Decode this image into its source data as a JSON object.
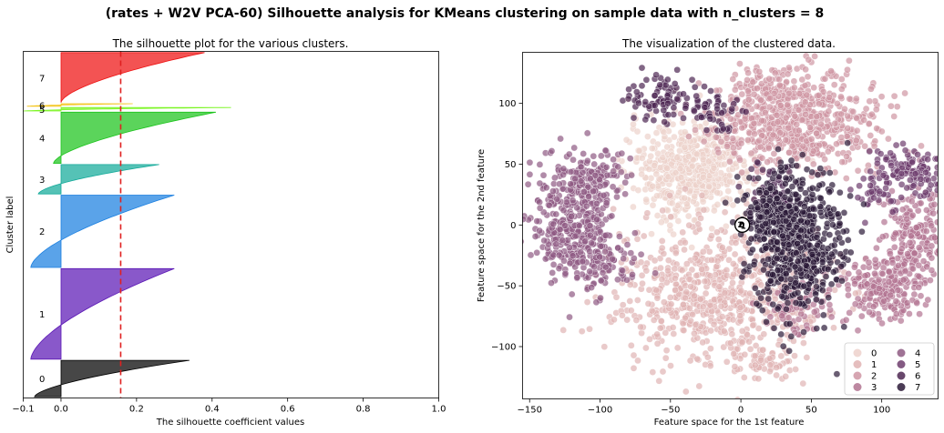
{
  "suptitle": "(rates + W2V PCA-60) Silhouette analysis for KMeans clustering on sample data with n_clusters = 8",
  "chart_data": [
    {
      "type": "area",
      "title": "The silhouette plot for the various clusters.",
      "xlabel": "The silhouette coefficient values",
      "ylabel": "Cluster label",
      "xlim": [
        -0.1,
        1.0
      ],
      "xticks": [
        "−0.1",
        "0.0",
        "0.2",
        "0.4",
        "0.6",
        "0.8",
        "1.0"
      ],
      "xtick_values": [
        -0.1,
        0.0,
        0.2,
        0.4,
        0.6,
        0.8,
        1.0
      ],
      "silhouette_avg": 0.158,
      "grid": false,
      "clusters": [
        {
          "label": "0",
          "color": "#000000",
          "min": -0.07,
          "max": 0.34,
          "size": 310
        },
        {
          "label": "1",
          "color": "#5b17b5",
          "min": -0.08,
          "max": 0.3,
          "size": 770
        },
        {
          "label": "2",
          "color": "#1a7fe0",
          "min": -0.08,
          "max": 0.3,
          "size": 615
        },
        {
          "label": "3",
          "color": "#14aa9a",
          "min": -0.06,
          "max": 0.26,
          "size": 250
        },
        {
          "label": "4",
          "color": "#1cc41c",
          "min": -0.02,
          "max": 0.41,
          "size": 435
        },
        {
          "label": "5",
          "color": "#7cf524",
          "min": -0.1,
          "max": 0.45,
          "size": 30
        },
        {
          "label": "6",
          "color": "#f4c51c",
          "min": -0.09,
          "max": 0.19,
          "size": 22
        },
        {
          "label": "7",
          "color": "#ee1111",
          "min": 0.0,
          "max": 0.38,
          "size": 425
        }
      ]
    },
    {
      "type": "scatter",
      "title": "The visualization of the clustered data.",
      "xlabel": "Feature space for the 1st feature",
      "ylabel": "Feature space for the 2nd feature",
      "xlim": [
        -155,
        140
      ],
      "ylim": [
        -143,
        142
      ],
      "xticks": [
        "−150",
        "−100",
        "−50",
        "0",
        "50",
        "100"
      ],
      "xtick_values": [
        -150,
        -100,
        -50,
        0,
        50,
        100
      ],
      "yticks": [
        "−100",
        "−50",
        "0",
        "50",
        "100"
      ],
      "ytick_values": [
        -100,
        -50,
        0,
        50,
        100
      ],
      "grid": false,
      "legend_position": "lower-right",
      "centers": [
        {
          "label": "0",
          "x": 1,
          "y": 1
        },
        {
          "label": "1",
          "x": 2,
          "y": 0
        },
        {
          "label": "2",
          "x": 0,
          "y": 1
        }
      ],
      "series": [
        {
          "name": "0",
          "color": "#edd1cb",
          "clusters": [
            {
              "cx": -35,
              "cy": 45,
              "sx": 22,
              "sy": 20,
              "n": 560
            }
          ]
        },
        {
          "name": "1",
          "color": "#e0b3b3",
          "clusters": [
            {
              "cx": -15,
              "cy": -55,
              "sx": 38,
              "sy": 28,
              "n": 700
            },
            {
              "cx": 15,
              "cy": -110,
              "sx": 12,
              "sy": 8,
              "n": 60
            }
          ]
        },
        {
          "name": "2",
          "color": "#cf95a3",
          "clusters": [
            {
              "cx": 40,
              "cy": 85,
              "sx": 30,
              "sy": 20,
              "n": 650
            },
            {
              "cx": 15,
              "cy": 110,
              "sx": 10,
              "sy": 8,
              "n": 50
            }
          ]
        },
        {
          "name": "3",
          "color": "#b27391",
          "clusters": [
            {
              "cx": 120,
              "cy": -10,
              "sx": 12,
              "sy": 22,
              "n": 200
            },
            {
              "cx": 100,
              "cy": -55,
              "sx": 14,
              "sy": 14,
              "n": 180
            },
            {
              "cx": 40,
              "cy": -70,
              "sx": 12,
              "sy": 10,
              "n": 70
            }
          ]
        },
        {
          "name": "4",
          "color": "#8e5a83",
          "clusters": [
            {
              "cx": -120,
              "cy": 0,
              "sx": 14,
              "sy": 25,
              "n": 380
            },
            {
              "cx": -105,
              "cy": 40,
              "sx": 12,
              "sy": 12,
              "n": 90
            },
            {
              "cx": -95,
              "cy": -30,
              "sx": 10,
              "sy": 10,
              "n": 70
            }
          ]
        },
        {
          "name": "5",
          "color": "#6e3d6d",
          "clusters": [
            {
              "cx": 120,
              "cy": 45,
              "sx": 12,
              "sy": 10,
              "n": 110
            },
            {
              "cx": 95,
              "cy": 30,
              "sx": 8,
              "sy": 8,
              "n": 40
            }
          ]
        },
        {
          "name": "6",
          "color": "#4d2752",
          "clusters": [
            {
              "cx": -55,
              "cy": 105,
              "sx": 15,
              "sy": 10,
              "n": 90
            },
            {
              "cx": -15,
              "cy": 90,
              "sx": 10,
              "sy": 10,
              "n": 45
            },
            {
              "cx": 20,
              "cy": 25,
              "sx": 10,
              "sy": 15,
              "n": 60
            }
          ]
        },
        {
          "name": "7",
          "color": "#2b1a38",
          "clusters": [
            {
              "cx": 40,
              "cy": -15,
              "sx": 16,
              "sy": 28,
              "n": 600
            },
            {
              "cx": 20,
              "cy": 10,
              "sx": 10,
              "sy": 12,
              "n": 120
            }
          ]
        }
      ]
    }
  ]
}
